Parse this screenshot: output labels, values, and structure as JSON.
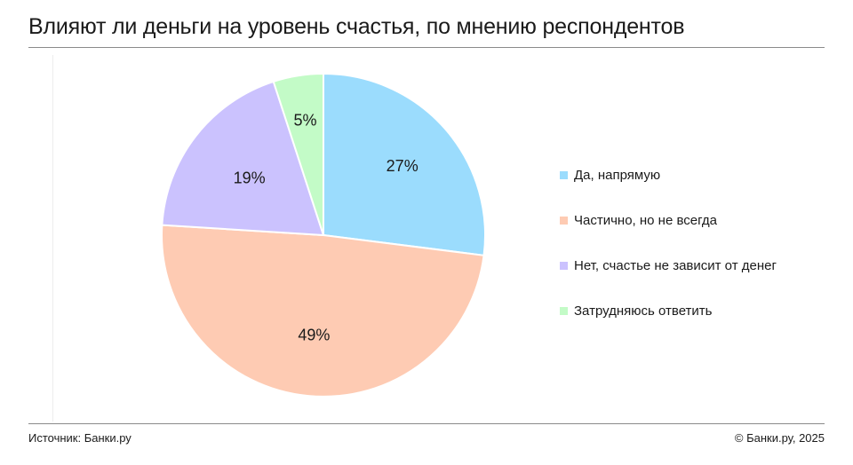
{
  "header": {
    "title": "Влияют ли деньги на уровень счастья, по мнению респондентов"
  },
  "chart_data": {
    "type": "pie",
    "title": "Влияют ли деньги на уровень счастья, по мнению респондентов",
    "categories": [
      "Да, напрямую",
      "Частично, но не всегда",
      "Нет, счастье не зависит от денег",
      "Затрудняюсь ответить"
    ],
    "values": [
      27,
      49,
      19,
      5
    ],
    "value_labels": [
      "27%",
      "49%",
      "19%",
      "5%"
    ],
    "colors": [
      "#9bdcfd",
      "#fecbb3",
      "#cbc2fe",
      "#c3fbc7"
    ],
    "legend_position": "right",
    "start_angle": "12 o'clock",
    "direction": "clockwise"
  },
  "footer": {
    "source": "Источник: Банки.ру",
    "copyright": "© Банки.ру, 2025"
  }
}
